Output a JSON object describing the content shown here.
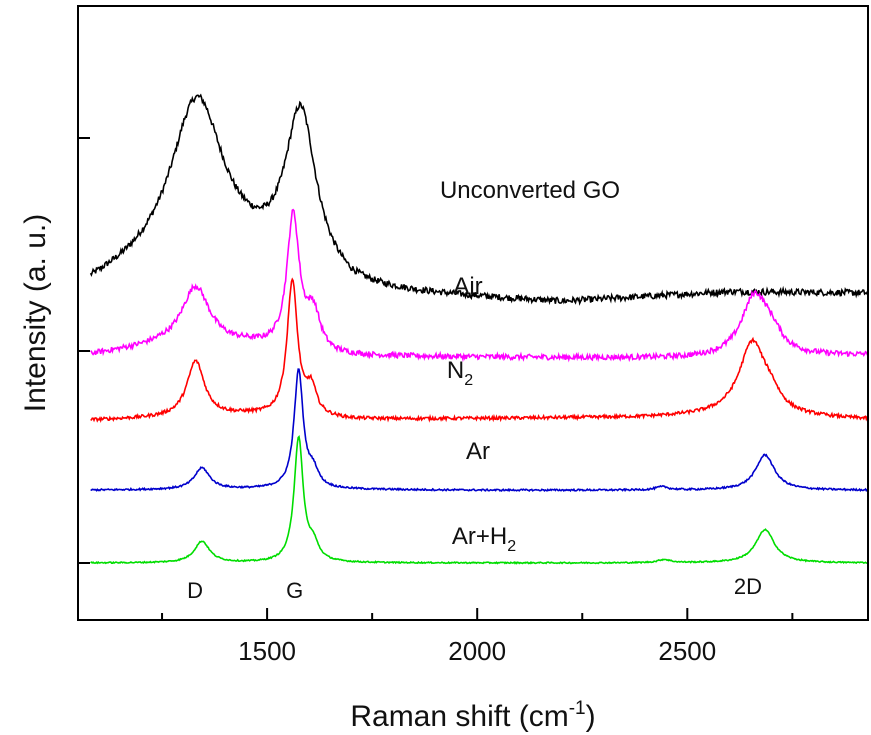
{
  "chart_data": {
    "type": "line",
    "xlabel": "Raman shift (cm",
    "xlabel_sup": "-1",
    "xlabel_end": ")",
    "ylabel": "Intensity (a. u.)",
    "xlim": [
      1050,
      2930
    ],
    "x_ticks": [
      1500,
      2000,
      2500
    ],
    "x_tick_labels": [
      "1500",
      "2000",
      "2500"
    ],
    "y_units": "arbitrary, stacked offsets",
    "grid": false,
    "legend": "none; series labeled inline above each spectrum",
    "peak_labels": [
      {
        "text": "D",
        "x": 1350
      },
      {
        "text": "G",
        "x": 1580
      },
      {
        "text": "2D",
        "x": 2680
      }
    ],
    "series": [
      {
        "name": "Unconverted GO",
        "label_text": "Unconverted GO",
        "label_sub": "",
        "color": "#000000",
        "baseline_points": [
          [
            1050,
            2.95
          ],
          [
            1300,
            3.3
          ],
          [
            1450,
            3.22
          ],
          [
            1700,
            2.94
          ],
          [
            2200,
            2.85
          ],
          [
            2600,
            2.95
          ],
          [
            2930,
            2.94
          ]
        ],
        "peaks": [
          {
            "center": 1335,
            "height": 1.45,
            "width": 75
          },
          {
            "center": 1580,
            "height": 1.5,
            "width": 45
          }
        ],
        "noise": 0.03
      },
      {
        "name": "Air",
        "label_text": "Air",
        "label_sub": "",
        "color": "#ff00ff",
        "baseline_points": [
          [
            1050,
            2.35
          ],
          [
            1250,
            2.45
          ],
          [
            1450,
            2.45
          ],
          [
            1650,
            2.35
          ],
          [
            2500,
            2.33
          ],
          [
            2930,
            2.36
          ]
        ],
        "peaks": [
          {
            "center": 1330,
            "height": 0.55,
            "width": 40
          },
          {
            "center": 1562,
            "height": 1.25,
            "width": 18
          },
          {
            "center": 1610,
            "height": 0.35,
            "width": 20
          },
          {
            "center": 2660,
            "height": 0.55,
            "width": 38
          },
          {
            "center": 2700,
            "height": 0.15,
            "width": 30
          }
        ],
        "noise": 0.025
      },
      {
        "name": "N2",
        "label_text": "N",
        "label_sub": "2",
        "color": "#ff0000",
        "baseline_points": [
          [
            1050,
            1.75
          ],
          [
            1300,
            1.78
          ],
          [
            1450,
            1.8
          ],
          [
            1700,
            1.76
          ],
          [
            2400,
            1.78
          ],
          [
            2600,
            1.8
          ],
          [
            2930,
            1.76
          ]
        ],
        "peaks": [
          {
            "center": 1330,
            "height": 0.52,
            "width": 25
          },
          {
            "center": 1560,
            "height": 1.26,
            "width": 15
          },
          {
            "center": 1605,
            "height": 0.25,
            "width": 15
          },
          {
            "center": 2655,
            "height": 0.68,
            "width": 38
          },
          {
            "center": 2700,
            "height": 0.12,
            "width": 25
          }
        ],
        "noise": 0.015
      },
      {
        "name": "Ar",
        "label_text": "Ar",
        "label_sub": "",
        "color": "#0000cc",
        "baseline_points": [
          [
            1050,
            1.1
          ],
          [
            1500,
            1.11
          ],
          [
            2000,
            1.1
          ],
          [
            2930,
            1.1
          ]
        ],
        "peaks": [
          {
            "center": 1345,
            "height": 0.2,
            "width": 22
          },
          {
            "center": 1575,
            "height": 1.1,
            "width": 13
          },
          {
            "center": 1610,
            "height": 0.15,
            "width": 15
          },
          {
            "center": 2440,
            "height": 0.03,
            "width": 18
          },
          {
            "center": 2685,
            "height": 0.33,
            "width": 27
          }
        ],
        "noise": 0.008
      },
      {
        "name": "Ar+H2",
        "label_text": "Ar+H",
        "label_sub": "2",
        "color": "#00dd00",
        "baseline_points": [
          [
            1050,
            0.42
          ],
          [
            2930,
            0.42
          ]
        ],
        "peaks": [
          {
            "center": 1345,
            "height": 0.2,
            "width": 22
          },
          {
            "center": 1575,
            "height": 1.16,
            "width": 13
          },
          {
            "center": 1610,
            "height": 0.15,
            "width": 15
          },
          {
            "center": 2445,
            "height": 0.03,
            "width": 18
          },
          {
            "center": 2685,
            "height": 0.31,
            "width": 27
          }
        ],
        "noise": 0.006
      }
    ]
  }
}
